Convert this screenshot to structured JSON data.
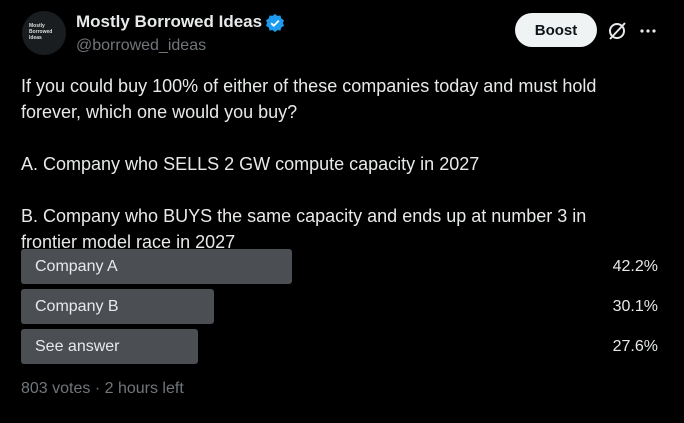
{
  "header": {
    "name": "Mostly Borrowed Ideas",
    "handle": "@borrowed_ideas",
    "avatar_text": "Mostly Borrowed Ideas",
    "button": "Boost"
  },
  "text": [
    [
      "If you could buy 100% of either of these companies today and must hold",
      "forever, which one would you buy?"
    ],
    [
      "A. Company who SELLS 2 GW compute capacity in 2027"
    ],
    [
      "B. Company who BUYS the same capacity and ends up at number 3 in",
      "frontier model race in 2027"
    ]
  ],
  "poll": {
    "options": [
      {
        "label": "Company A",
        "value": 42.2,
        "value_label": "42.2%"
      },
      {
        "label": "Company B",
        "value": 30.1,
        "value_label": "30.1%"
      },
      {
        "label": "See answer",
        "value": 27.6,
        "value_label": "27.6%"
      }
    ],
    "footer": "803 votes · 2 hours left"
  }
}
